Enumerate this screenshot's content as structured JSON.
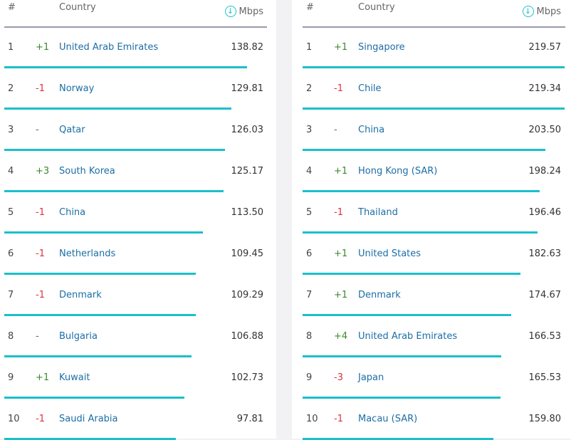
{
  "headers": {
    "rank": "#",
    "country": "Country",
    "unit": "Mbps"
  },
  "icons": {
    "unit_icon": "download-arrow-icon"
  },
  "colors": {
    "bar": "#1bbfca",
    "up": "#3a8a2a",
    "down": "#e0303a",
    "link": "#1c6ea5"
  },
  "chart_data": [
    {
      "type": "bar",
      "categories": [
        "United Arab Emirates",
        "Norway",
        "Qatar",
        "South Korea",
        "China",
        "Netherlands",
        "Denmark",
        "Bulgaria",
        "Kuwait",
        "Saudi Arabia"
      ],
      "series": [
        {
          "values": [
            138.82,
            129.81,
            126.03,
            125.17,
            113.5,
            109.45,
            109.29,
            106.88,
            102.73,
            97.81
          ]
        }
      ],
      "value_labels": [
        "138.82",
        "129.81",
        "126.03",
        "125.17",
        "113.50",
        "109.45",
        "109.29",
        "106.88",
        "102.73",
        "97.81"
      ],
      "ranks": [
        "1",
        "2",
        "3",
        "4",
        "5",
        "6",
        "7",
        "8",
        "9",
        "10"
      ],
      "changes": [
        "+1",
        "-1",
        "-",
        "+3",
        "-1",
        "-1",
        "-1",
        "-",
        "+1",
        "-1"
      ],
      "ylim": [
        0,
        150
      ]
    },
    {
      "type": "bar",
      "categories": [
        "Singapore",
        "Chile",
        "China",
        "Hong Kong (SAR)",
        "Thailand",
        "United States",
        "Denmark",
        "United Arab Emirates",
        "Japan",
        "Macau (SAR)"
      ],
      "series": [
        {
          "values": [
            219.57,
            219.34,
            203.5,
            198.24,
            196.46,
            182.63,
            174.67,
            166.53,
            165.53,
            159.8
          ]
        }
      ],
      "value_labels": [
        "219.57",
        "219.34",
        "203.50",
        "198.24",
        "196.46",
        "182.63",
        "174.67",
        "166.53",
        "165.53",
        "159.80"
      ],
      "ranks": [
        "1",
        "2",
        "3",
        "4",
        "5",
        "6",
        "7",
        "8",
        "9",
        "10"
      ],
      "changes": [
        "+1",
        "-1",
        "-",
        "+1",
        "-1",
        "+1",
        "+1",
        "+4",
        "-3",
        "-1"
      ],
      "ylim": [
        0,
        220
      ]
    }
  ]
}
